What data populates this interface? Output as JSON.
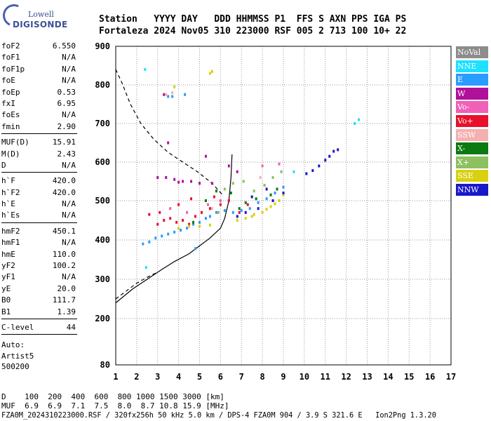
{
  "logo": {
    "line1": "Lowell",
    "line2": "DIGISONDE"
  },
  "header": {
    "line1": "Station   YYYY DAY   DDD HHMMSS P1  FFS S AXN PPS IGA PS",
    "line2": "Fortaleza 2024 Nov05 310 223000 RSF 005 2 713 100 10+ 22"
  },
  "params": {
    "group1": [
      {
        "k": "foF2",
        "v": "6.550"
      },
      {
        "k": "foF1",
        "v": "N/A"
      },
      {
        "k": "foF1p",
        "v": "N/A"
      },
      {
        "k": "foE",
        "v": "N/A"
      },
      {
        "k": "foEp",
        "v": "0.53"
      },
      {
        "k": "fxI",
        "v": "6.95"
      },
      {
        "k": "foEs",
        "v": "N/A"
      },
      {
        "k": "fmin",
        "v": "2.90"
      }
    ],
    "group2": [
      {
        "k": "MUF(D)",
        "v": "15.91"
      },
      {
        "k": "M(D)",
        "v": "2.43"
      },
      {
        "k": "D",
        "v": "N/A"
      }
    ],
    "group3": [
      {
        "k": "h`F",
        "v": "420.0"
      },
      {
        "k": "h`F2",
        "v": "420.0"
      },
      {
        "k": "h`E",
        "v": "N/A"
      },
      {
        "k": "h`Es",
        "v": "N/A"
      }
    ],
    "group4": [
      {
        "k": "hmF2",
        "v": "450.1"
      },
      {
        "k": "hmF1",
        "v": "N/A"
      },
      {
        "k": "hmE",
        "v": "110.0"
      },
      {
        "k": "yF2",
        "v": "100.2"
      },
      {
        "k": "yF1",
        "v": "N/A"
      },
      {
        "k": "yE",
        "v": "20.0"
      },
      {
        "k": "B0",
        "v": "111.7"
      },
      {
        "k": "B1",
        "v": "1.39"
      }
    ],
    "group5": [
      {
        "k": "C-level",
        "v": "44"
      }
    ]
  },
  "auto": {
    "line1": "Auto:",
    "line2": "Artist5",
    "line3": "500200"
  },
  "legend": [
    {
      "label": "NoVal",
      "color": "#8c8c8c"
    },
    {
      "label": "NNE",
      "color": "#1ee0ff"
    },
    {
      "label": "E",
      "color": "#2a9cff"
    },
    {
      "label": "W",
      "color": "#b0109a"
    },
    {
      "label": "Vo-",
      "color": "#f060b8"
    },
    {
      "label": "Vo+",
      "color": "#e8102a"
    },
    {
      "label": "SSW",
      "color": "#f4b0b0"
    },
    {
      "label": "X-",
      "color": "#0c7a10"
    },
    {
      "label": "X+",
      "color": "#8cc060"
    },
    {
      "label": "SSE",
      "color": "#d8d010"
    },
    {
      "label": "NNW",
      "color": "#1818c8"
    }
  ],
  "footer": {
    "line1": "D    100  200  400  600  800 1000 1500 3000 [km]",
    "line2": "MUF  6.9  6.9  7.1  7.5  8.0  8.7 10.8 15.9 [MHz]",
    "line3": "FZA0M_2024310223000.RSF / 320fx256h 50 kHz 5.0 km / DPS-4 FZA0M 904 / 3.9 S 321.6 E   Ion2Png 1.3.20"
  },
  "chart_data": {
    "type": "scatter",
    "xlabel": "",
    "ylabel": "",
    "xlim": [
      1,
      17
    ],
    "ylim": [
      80,
      900
    ],
    "xticks": [
      1,
      2,
      3,
      4,
      5,
      6,
      7,
      8,
      9,
      10,
      11,
      12,
      13,
      14,
      15,
      16,
      17
    ],
    "yticks": [
      80,
      200,
      300,
      400,
      500,
      600,
      700,
      800,
      900
    ],
    "grid": true,
    "legend_placement": "right",
    "series": [
      {
        "name": "NNE",
        "points": [
          [
            2.4,
            840
          ],
          [
            2.45,
            330
          ],
          [
            12.4,
            700
          ],
          [
            12.6,
            710
          ],
          [
            9.5,
            575
          ]
        ]
      },
      {
        "name": "E",
        "points": [
          [
            2.3,
            390
          ],
          [
            2.6,
            395
          ],
          [
            2.9,
            405
          ],
          [
            3.2,
            410
          ],
          [
            3.5,
            415
          ],
          [
            3.8,
            420
          ],
          [
            4.1,
            425
          ],
          [
            4.4,
            430
          ],
          [
            4.7,
            440
          ],
          [
            5.0,
            445
          ],
          [
            5.3,
            455
          ],
          [
            5.5,
            460
          ],
          [
            5.8,
            470
          ],
          [
            6.2,
            475
          ],
          [
            6.6,
            470
          ],
          [
            7.0,
            475
          ],
          [
            7.4,
            480
          ],
          [
            7.8,
            495
          ],
          [
            8.2,
            505
          ],
          [
            8.6,
            520
          ],
          [
            9.0,
            535
          ],
          [
            3.5,
            770
          ],
          [
            3.7,
            770
          ],
          [
            4.3,
            775
          ],
          [
            4.8,
            378
          ]
        ]
      },
      {
        "name": "W",
        "points": [
          [
            3.0,
            560
          ],
          [
            3.4,
            560
          ],
          [
            3.8,
            555
          ],
          [
            4.2,
            550
          ],
          [
            4.6,
            550
          ],
          [
            5.0,
            545
          ],
          [
            5.6,
            545
          ],
          [
            5.3,
            615
          ],
          [
            6.4,
            590
          ],
          [
            6.8,
            575
          ],
          [
            3.3,
            775
          ],
          [
            3.5,
            650
          ],
          [
            4.0,
            548
          ]
        ]
      },
      {
        "name": "Vo-",
        "points": [
          [
            3.6,
            480
          ],
          [
            4.4,
            470
          ],
          [
            5.4,
            490
          ],
          [
            6.0,
            500
          ],
          [
            8.8,
            595
          ],
          [
            8.0,
            590
          ]
        ]
      },
      {
        "name": "Vo+",
        "points": [
          [
            2.6,
            465
          ],
          [
            3.0,
            440
          ],
          [
            3.3,
            450
          ],
          [
            3.6,
            455
          ],
          [
            3.9,
            445
          ],
          [
            4.2,
            450
          ],
          [
            4.5,
            440
          ],
          [
            4.8,
            460
          ],
          [
            5.1,
            470
          ],
          [
            5.5,
            480
          ],
          [
            6.0,
            490
          ],
          [
            6.4,
            500
          ],
          [
            5.7,
            510
          ],
          [
            3.1,
            470
          ],
          [
            4.0,
            490
          ],
          [
            4.6,
            505
          ],
          [
            6.9,
            470
          ],
          [
            7.3,
            490
          ]
        ]
      },
      {
        "name": "SSW",
        "points": [
          [
            3.4,
            775
          ],
          [
            3.7,
            780
          ],
          [
            5.6,
            480
          ],
          [
            7.9,
            560
          ]
        ]
      },
      {
        "name": "X-",
        "points": [
          [
            5.3,
            500
          ],
          [
            5.8,
            525
          ],
          [
            6.5,
            520
          ],
          [
            6.9,
            480
          ],
          [
            7.2,
            495
          ],
          [
            7.7,
            505
          ],
          [
            8.4,
            515
          ],
          [
            8.7,
            530
          ],
          [
            4.7,
            445
          ]
        ]
      },
      {
        "name": "X+",
        "points": [
          [
            6.2,
            530
          ],
          [
            6.6,
            545
          ],
          [
            7.1,
            550
          ],
          [
            7.6,
            525
          ],
          [
            8.1,
            540
          ],
          [
            8.5,
            560
          ],
          [
            8.9,
            575
          ],
          [
            5.9,
            470
          ]
        ]
      },
      {
        "name": "SSE",
        "points": [
          [
            4.0,
            430
          ],
          [
            4.5,
            435
          ],
          [
            5.0,
            435
          ],
          [
            5.5,
            438
          ],
          [
            6.8,
            450
          ],
          [
            7.2,
            455
          ],
          [
            7.6,
            465
          ],
          [
            8.0,
            470
          ],
          [
            8.4,
            485
          ],
          [
            8.8,
            500
          ],
          [
            9.0,
            515
          ],
          [
            5.5,
            830
          ],
          [
            5.6,
            835
          ],
          [
            3.8,
            795
          ],
          [
            7.5,
            460
          ],
          [
            8.2,
            478
          ],
          [
            8.6,
            492
          ]
        ]
      },
      {
        "name": "NNW",
        "points": [
          [
            10.1,
            570
          ],
          [
            10.4,
            578
          ],
          [
            10.7,
            590
          ],
          [
            11.0,
            605
          ],
          [
            11.2,
            615
          ],
          [
            11.4,
            628
          ],
          [
            11.6,
            632
          ],
          [
            6.8,
            460
          ],
          [
            7.2,
            470
          ],
          [
            7.8,
            480
          ],
          [
            8.5,
            500
          ],
          [
            9.0,
            520
          ],
          [
            7.5,
            510
          ],
          [
            8.2,
            530
          ]
        ]
      }
    ],
    "profile_curve": {
      "x": [
        1.0,
        1.8,
        2.5,
        3.2,
        3.8,
        4.5,
        5.0,
        5.5,
        6.0,
        6.2,
        6.4,
        6.5,
        6.55
      ],
      "y": [
        240,
        275,
        300,
        325,
        345,
        365,
        385,
        405,
        430,
        455,
        500,
        560,
        620
      ]
    },
    "dashed_lower": {
      "x": [
        1.0,
        1.5,
        2.0,
        2.5,
        3.0
      ],
      "y": [
        250,
        270,
        290,
        305,
        318
      ]
    },
    "dashed_upper": {
      "x": [
        1.0,
        1.3,
        1.7,
        2.2,
        2.8,
        3.5,
        4.2,
        4.9,
        5.6,
        6.1
      ],
      "y": [
        840,
        805,
        750,
        700,
        660,
        625,
        600,
        575,
        545,
        515
      ]
    }
  }
}
